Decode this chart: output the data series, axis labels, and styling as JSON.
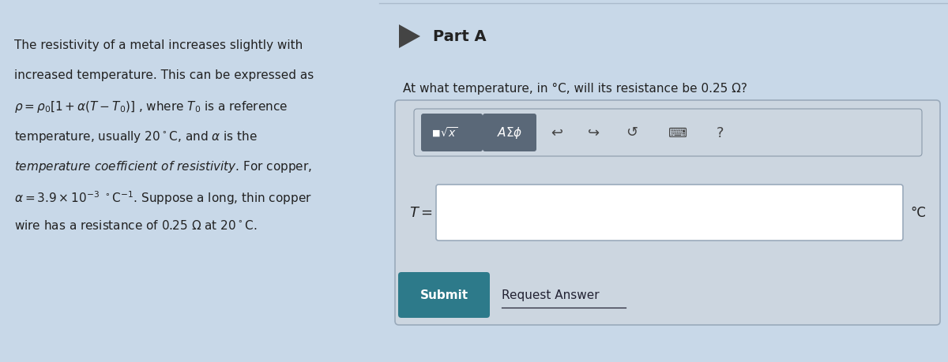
{
  "bg_color": "#c8d8e8",
  "part_a_label": "Part A",
  "question_text": "At what temperature, in °C, will its resistance be 0.25 Ω?",
  "T_label": "$T =$",
  "unit_label": "°C",
  "submit_text": "Submit",
  "request_text": "Request Answer",
  "submit_bg": "#2d7a8a",
  "submit_text_color": "#ffffff",
  "input_box_bg": "#ffffff",
  "outer_box_bg": "#ccd6e0",
  "outer_box_border": "#9aaabb",
  "toolbar_btn_bg": "#5a6878",
  "icon_color": "#444444"
}
